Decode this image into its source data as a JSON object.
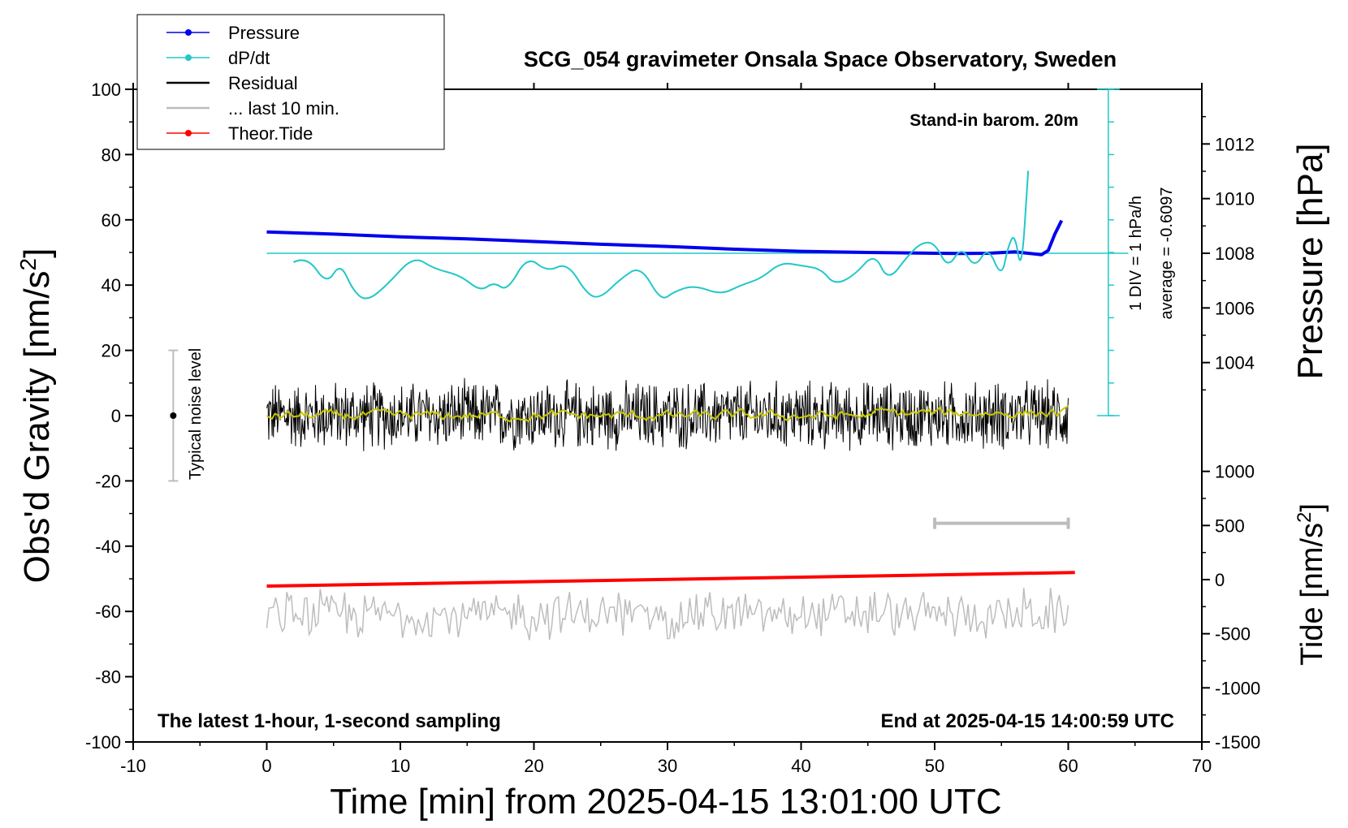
{
  "chart_data": {
    "type": "line",
    "title": "SCG_054 gravimeter Onsala Space Observatory, Sweden",
    "xlabel": "Time [min] from 2025-04-15 13:01:00 UTC",
    "ylabel": "Obs'd Gravity [nm/s",
    "ylabel_sup": "2",
    "ylabel_tail": "]",
    "y2label_pressure": "Pressure [hPa]",
    "y2label_tide": "Tide [nm/s",
    "y2label_tide_sup": "2",
    "y2label_tide_tail": "]",
    "xlim": [
      -10,
      70
    ],
    "ylim": [
      -100,
      100
    ],
    "x_ticks": [
      "-10",
      "0",
      "10",
      "20",
      "30",
      "40",
      "50",
      "60",
      "70"
    ],
    "y_ticks": [
      "100",
      "80",
      "60",
      "40",
      "20",
      "0",
      "-20",
      "-40",
      "-60",
      "-80",
      "-100"
    ],
    "pressure_axis": {
      "ylim": [
        1002,
        1014
      ],
      "ticks": [
        "1012",
        "1010",
        "1008",
        "1006",
        "1004"
      ]
    },
    "tide_axis": {
      "ylim": [
        -1500,
        1500
      ],
      "ticks": [
        "1000",
        "500",
        "0",
        "-500",
        "-1000",
        "-1500"
      ]
    },
    "annotations": {
      "barometer": "Stand-in barom. 20m",
      "scale": "1 DIV = 1 hPa/h",
      "average": "average = -0.6097",
      "noise": "Typical noise level",
      "latest": "The latest 1-hour, 1-second sampling",
      "end": "End at 2025-04-15 14:00:59 UTC"
    },
    "legend": [
      {
        "label": "Pressure",
        "color": "#0000ee",
        "marker": true
      },
      {
        "label": "dP/dt",
        "color": "#22c8c8",
        "marker": true
      },
      {
        "label": "Residual",
        "color": "#000000",
        "marker": false
      },
      {
        "label": "... last 10 min.",
        "color": "#bdbdbd",
        "marker": false
      },
      {
        "label": "Theor.Tide",
        "color": "#ff0000",
        "marker": true
      }
    ],
    "series": [
      {
        "name": "Pressure",
        "axis": "pressure_hPa",
        "color": "#0000ee",
        "x": [
          0,
          5,
          10,
          15,
          20,
          25,
          30,
          35,
          40,
          45,
          50,
          52,
          54,
          56,
          57,
          58,
          58.5,
          59,
          59.5
        ],
        "values": [
          1008.78,
          1008.7,
          1008.6,
          1008.53,
          1008.43,
          1008.33,
          1008.25,
          1008.15,
          1008.07,
          1008.03,
          1008.0,
          1007.99,
          1008.0,
          1008.05,
          1008.0,
          1007.95,
          1008.1,
          1008.7,
          1009.2
        ]
      },
      {
        "name": "dP/dt",
        "axis": "gravity_units",
        "color": "#22c8c8",
        "x": [
          2.0,
          3.0,
          4.5,
          5.5,
          6.5,
          7.5,
          9.0,
          11.0,
          12.5,
          14.5,
          16.0,
          17.0,
          18.0,
          19.5,
          21.0,
          22.5,
          24.0,
          25.0,
          26.5,
          28.0,
          29.5,
          30.5,
          32.0,
          34.0,
          35.5,
          37.0,
          38.5,
          40.0,
          41.5,
          42.5,
          44.0,
          45.5,
          46.5,
          48.0,
          49.0,
          50.0,
          51.0,
          52.0,
          53.0,
          54.0,
          55.0,
          55.5,
          56.0,
          56.5,
          57.0
        ],
        "values": [
          47,
          49,
          40,
          47,
          38,
          35,
          40,
          49,
          45,
          43,
          38,
          41,
          38,
          49,
          44,
          47,
          37,
          36,
          42,
          46,
          35,
          38,
          40,
          37,
          40,
          42,
          47,
          46,
          45,
          40,
          43,
          50,
          41,
          49,
          53,
          53,
          45,
          52,
          45,
          52,
          42,
          52,
          56,
          43,
          75
        ]
      },
      {
        "name": "Residual",
        "axis": "gravity_units",
        "color": "#000000",
        "x_range": [
          0,
          60
        ],
        "mean": 0,
        "amplitude": 12
      },
      {
        "name": "Residual smoothed",
        "axis": "gravity_units",
        "color": "#c8c800",
        "x_range": [
          0,
          60
        ],
        "mean": 0
      },
      {
        "name": "Theor.Tide",
        "axis": "tide_nm_s2",
        "color": "#ff0000",
        "x": [
          0,
          60.5
        ],
        "values": [
          -60,
          65
        ]
      },
      {
        "name": "... last 10 min.",
        "axis": "gravity_units",
        "color": "#bdbdbd",
        "x_range": [
          0,
          60
        ],
        "mean": -61,
        "amplitude": 9
      }
    ],
    "noise_bar": {
      "x": -7,
      "y_range": [
        -20,
        20
      ],
      "center": 0
    },
    "last10_bar": {
      "x_range": [
        50,
        60
      ],
      "y": -33
    }
  }
}
